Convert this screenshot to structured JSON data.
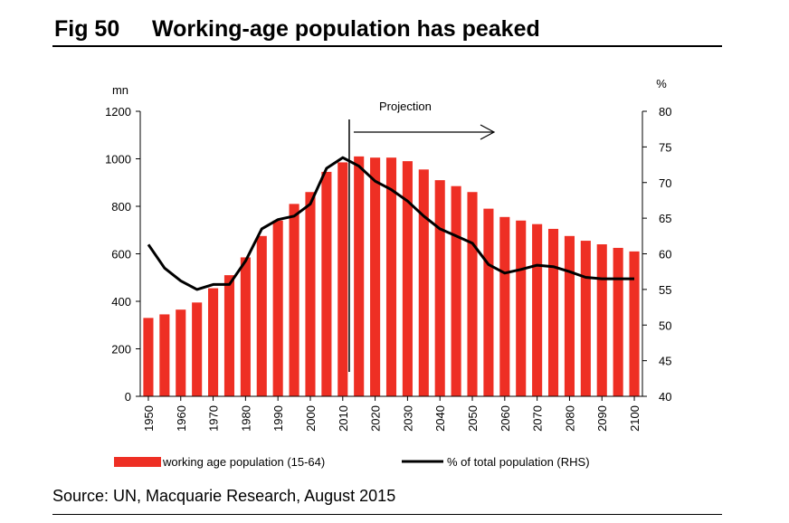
{
  "header": {
    "fig_number": "Fig 50",
    "title": "Working-age population has peaked"
  },
  "footer": {
    "source": "Source: UN, Macquarie Research, August 2015"
  },
  "colors": {
    "bar": "#ee2f24",
    "line": "#000000"
  },
  "chart_data": {
    "type": "bar",
    "left_unit": "mn",
    "right_unit": "%",
    "annotation": "Projection",
    "projection_start_year": 2012,
    "x": [
      1950,
      1955,
      1960,
      1965,
      1970,
      1975,
      1980,
      1985,
      1990,
      1995,
      2000,
      2005,
      2010,
      2015,
      2020,
      2025,
      2030,
      2035,
      2040,
      2045,
      2050,
      2055,
      2060,
      2065,
      2070,
      2075,
      2080,
      2085,
      2090,
      2095,
      2100
    ],
    "x_tick_labels": [
      "1950",
      "1960",
      "1970",
      "1980",
      "1990",
      "2000",
      "2010",
      "2020",
      "2030",
      "2040",
      "2050",
      "2060",
      "2070",
      "2080",
      "2090",
      "2100"
    ],
    "ylim_left": [
      0,
      1200
    ],
    "yticks_left": [
      "0",
      "200",
      "400",
      "600",
      "800",
      "1000",
      "1200"
    ],
    "ylim_right": [
      40,
      80
    ],
    "yticks_right": [
      "40",
      "45",
      "50",
      "55",
      "60",
      "65",
      "70",
      "75",
      "80"
    ],
    "grid": false,
    "legend_position": "bottom",
    "series": [
      {
        "name": "working age population (15-64)",
        "type": "bar",
        "axis": "left",
        "values": [
          330,
          345,
          365,
          395,
          455,
          510,
          585,
          675,
          740,
          810,
          860,
          945,
          985,
          1010,
          1005,
          1005,
          990,
          955,
          910,
          885,
          860,
          790,
          755,
          740,
          725,
          705,
          675,
          655,
          640,
          625,
          610
        ]
      },
      {
        "name": "% of total population (RHS)",
        "type": "line",
        "axis": "right",
        "values": [
          61.3,
          58.0,
          56.2,
          55.0,
          55.7,
          55.7,
          59.0,
          63.5,
          64.8,
          65.3,
          67.0,
          72.0,
          73.5,
          72.3,
          70.2,
          69.0,
          67.4,
          65.3,
          63.5,
          62.5,
          61.5,
          58.5,
          57.3,
          57.8,
          58.4,
          58.2,
          57.5,
          56.7,
          56.5,
          56.5,
          56.5
        ]
      }
    ]
  }
}
